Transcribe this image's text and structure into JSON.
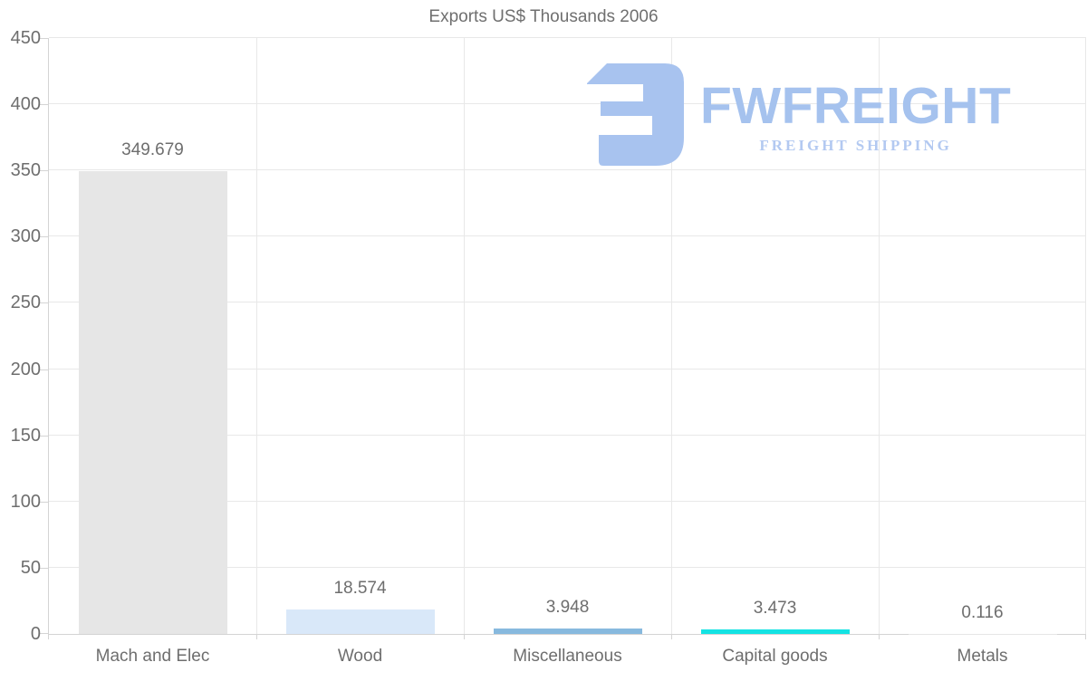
{
  "title": "Exports US$ Thousands 2006",
  "logo": {
    "brand": "FWFREIGHT",
    "tagline": "FREIGHT SHIPPING",
    "icon_color": "#a8c3ef",
    "brand_color": "#a5c2ee",
    "tagline_color": "#b3c9f1"
  },
  "chart_data": {
    "type": "bar",
    "title": "Exports US$ Thousands 2006",
    "categories": [
      "Mach and Elec",
      "Wood",
      "Miscellaneous",
      "Capital goods",
      "Metals"
    ],
    "values": [
      349.679,
      18.574,
      3.948,
      3.473,
      0.116
    ],
    "value_labels": [
      "349.679",
      "18.574",
      "3.948",
      "3.473",
      "0.116"
    ],
    "bar_colors": [
      "#e6e6e6",
      "#d9e8f9",
      "#87b9de",
      "#14e3e3",
      "#e6e6e6"
    ],
    "xlabel": "",
    "ylabel": "",
    "ylim": [
      0,
      450
    ],
    "yticks": [
      0,
      50,
      100,
      150,
      200,
      250,
      300,
      350,
      400,
      450
    ],
    "grid": true,
    "legend": false,
    "colors": {
      "text": "#6e6e6e",
      "grid": "#e8e8e8",
      "axis": "#d4d4d4"
    }
  }
}
